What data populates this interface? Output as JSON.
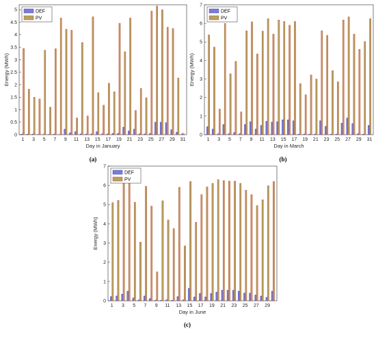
{
  "colors": {
    "def": "#7b7bd9",
    "pv": "#b3a35f",
    "def_edge": "#3a3a9a",
    "pv_edge": "#c0392b"
  },
  "chart_data": [
    {
      "type": "bar",
      "caption": "(a)",
      "xlabel": "Day in January",
      "ylabel": "Energy (MWh)",
      "ylim": [
        0,
        5.2
      ],
      "yticks": [
        0,
        0.5,
        1,
        1.5,
        2,
        2.5,
        3,
        3.5,
        4,
        4.5,
        5
      ],
      "xticks": [
        1,
        3,
        5,
        7,
        9,
        11,
        13,
        15,
        17,
        19,
        21,
        23,
        25,
        27,
        29,
        31
      ],
      "legend": "top-left",
      "categories": [
        1,
        2,
        3,
        4,
        5,
        6,
        7,
        8,
        9,
        10,
        11,
        12,
        13,
        14,
        15,
        16,
        17,
        18,
        19,
        20,
        21,
        22,
        23,
        24,
        25,
        26,
        27,
        28,
        29,
        30,
        31
      ],
      "series": [
        {
          "name": "DEF",
          "values": [
            0.02,
            0.02,
            0.02,
            0.01,
            0.01,
            0.01,
            0.02,
            0.01,
            0.22,
            0.08,
            0.12,
            0.03,
            0.02,
            0.03,
            0.12,
            0.03,
            0.03,
            0.05,
            0.05,
            0.3,
            0.15,
            0.22,
            0.03,
            0.03,
            0.05,
            0.5,
            0.5,
            0.48,
            0.2,
            0.1,
            0.03
          ]
        },
        {
          "name": "PV",
          "values": [
            3.45,
            1.82,
            1.5,
            1.43,
            3.38,
            1.1,
            3.44,
            4.67,
            4.22,
            4.18,
            0.67,
            3.69,
            0.75,
            4.72,
            1.68,
            1.18,
            2.06,
            1.72,
            4.46,
            3.32,
            4.67,
            0.97,
            1.85,
            1.48,
            4.95,
            5.15,
            5.0,
            4.3,
            4.25,
            2.27,
            0.03
          ]
        }
      ]
    },
    {
      "type": "bar",
      "caption": "(b)",
      "xlabel": "Day in March",
      "ylabel": "Energy (MWh)",
      "ylim": [
        0,
        7
      ],
      "yticks": [
        0,
        1,
        2,
        3,
        4,
        5,
        6,
        7
      ],
      "xticks": [
        1,
        3,
        5,
        7,
        9,
        11,
        13,
        15,
        17,
        19,
        21,
        23,
        25,
        27,
        29,
        31
      ],
      "legend": "top-left",
      "categories": [
        1,
        2,
        3,
        4,
        5,
        6,
        7,
        8,
        9,
        10,
        11,
        12,
        13,
        14,
        15,
        16,
        17,
        18,
        19,
        20,
        21,
        22,
        23,
        24,
        25,
        26,
        27,
        28,
        29,
        30,
        31
      ],
      "series": [
        {
          "name": "DEF",
          "values": [
            0.43,
            0.3,
            0.05,
            0.55,
            0.05,
            0.12,
            0.05,
            0.55,
            0.7,
            0.3,
            0.5,
            0.72,
            0.68,
            0.7,
            0.8,
            0.8,
            0.75,
            0.03,
            0.03,
            0.03,
            0.03,
            0.75,
            0.45,
            0.03,
            0.03,
            0.62,
            0.9,
            0.6,
            0.05,
            0.03,
            0.5
          ]
        },
        {
          "name": "PV",
          "values": [
            5.38,
            4.72,
            1.38,
            6.0,
            3.28,
            3.95,
            1.23,
            5.6,
            6.08,
            4.35,
            5.58,
            6.25,
            5.42,
            6.18,
            6.1,
            5.9,
            6.1,
            2.75,
            2.15,
            3.22,
            3.0,
            5.6,
            5.35,
            3.45,
            2.85,
            6.18,
            6.35,
            5.42,
            4.6,
            5.02,
            6.25
          ]
        }
      ]
    },
    {
      "type": "bar",
      "caption": "(c)",
      "xlabel": "Day in June",
      "ylabel": "Energy (MWh)",
      "ylim": [
        0,
        7
      ],
      "yticks": [
        0,
        1,
        2,
        3,
        4,
        5,
        6,
        7
      ],
      "xticks": [
        1,
        3,
        5,
        7,
        9,
        11,
        13,
        15,
        17,
        19,
        21,
        23,
        25,
        27,
        29
      ],
      "legend": "top-left",
      "categories": [
        1,
        2,
        3,
        4,
        5,
        6,
        7,
        8,
        9,
        10,
        11,
        12,
        13,
        14,
        15,
        16,
        17,
        18,
        19,
        20,
        21,
        22,
        23,
        24,
        25,
        26,
        27,
        28,
        29,
        30
      ],
      "series": [
        {
          "name": "DEF",
          "values": [
            0.22,
            0.25,
            0.35,
            0.5,
            0.15,
            0.05,
            0.25,
            0.12,
            0.03,
            0.03,
            0.05,
            0.03,
            0.22,
            0.05,
            0.65,
            0.2,
            0.38,
            0.2,
            0.38,
            0.45,
            0.55,
            0.55,
            0.55,
            0.5,
            0.4,
            0.4,
            0.3,
            0.25,
            0.18,
            0.5
          ]
        },
        {
          "name": "PV",
          "values": [
            5.1,
            5.22,
            6.1,
            6.1,
            5.12,
            3.05,
            5.95,
            4.92,
            1.5,
            5.2,
            4.2,
            3.75,
            5.9,
            2.85,
            6.2,
            4.08,
            5.52,
            5.92,
            6.1,
            6.3,
            6.25,
            6.22,
            6.22,
            6.1,
            5.75,
            5.52,
            4.95,
            5.25,
            5.98,
            6.2
          ]
        }
      ]
    }
  ]
}
